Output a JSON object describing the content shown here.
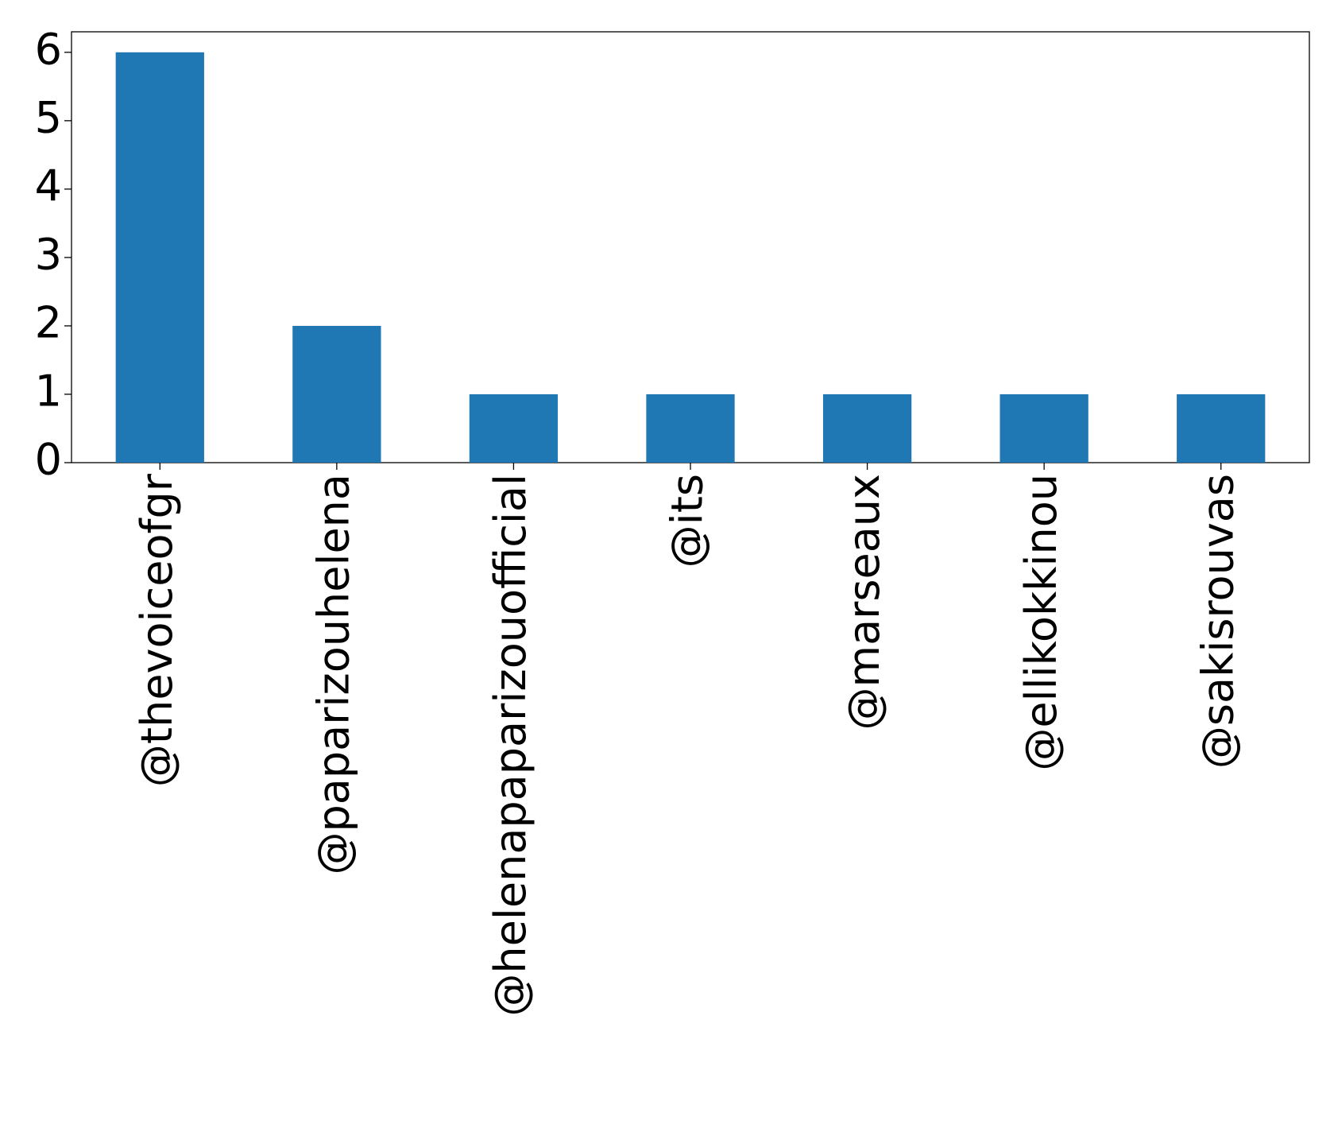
{
  "chart_data": {
    "type": "bar",
    "categories": [
      "@thevoiceofgr",
      "@paparizouhelena",
      "@helenapaparizouofficial",
      "@its",
      "@marseaux",
      "@ellikokkinou",
      "@sakisrouvas"
    ],
    "values": [
      6,
      2,
      1,
      1,
      1,
      1,
      1
    ],
    "color": "#1f77b4",
    "ylim": [
      0,
      6.3
    ],
    "yticks": [
      0,
      1,
      2,
      3,
      4,
      5,
      6
    ],
    "grid": false
  }
}
